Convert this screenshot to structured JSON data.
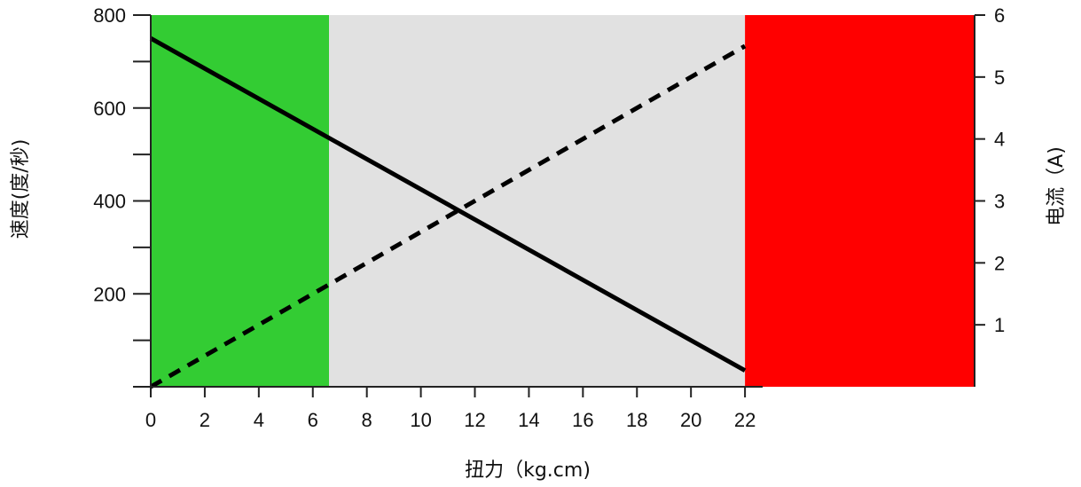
{
  "chart_data": {
    "type": "line",
    "title": "",
    "xlabel": "扭力（kg.cm)",
    "ylabel": "速度(度/秒)",
    "y2label": "电流（A)",
    "x_ticks": [
      0,
      2,
      4,
      6,
      8,
      10,
      12,
      14,
      16,
      18,
      20,
      22
    ],
    "y_ticks": [
      200,
      400,
      600,
      800
    ],
    "y2_ticks": [
      1,
      2,
      3,
      4,
      5,
      6
    ],
    "xlim": [
      0,
      30.5
    ],
    "ylim": [
      0,
      800
    ],
    "y2lim": [
      0,
      6
    ],
    "regions": [
      {
        "name": "green-zone",
        "x_start": 0,
        "x_end": 6.6,
        "color": "#33cc33"
      },
      {
        "name": "gray-zone",
        "x_start": 6.6,
        "x_end": 22,
        "color": "#e1e1e1"
      },
      {
        "name": "red-zone",
        "x_start": 22,
        "x_end": 30.5,
        "color": "#ff0000"
      }
    ],
    "series": [
      {
        "axis": "left",
        "style": "solid",
        "color": "#000000",
        "x": [
          0,
          22
        ],
        "y": [
          750,
          35
        ]
      },
      {
        "axis": "right",
        "style": "dashed",
        "color": "#000000",
        "x": [
          0,
          22
        ],
        "y": [
          0.0,
          5.5
        ]
      }
    ],
    "grid": false,
    "legend": "none"
  }
}
